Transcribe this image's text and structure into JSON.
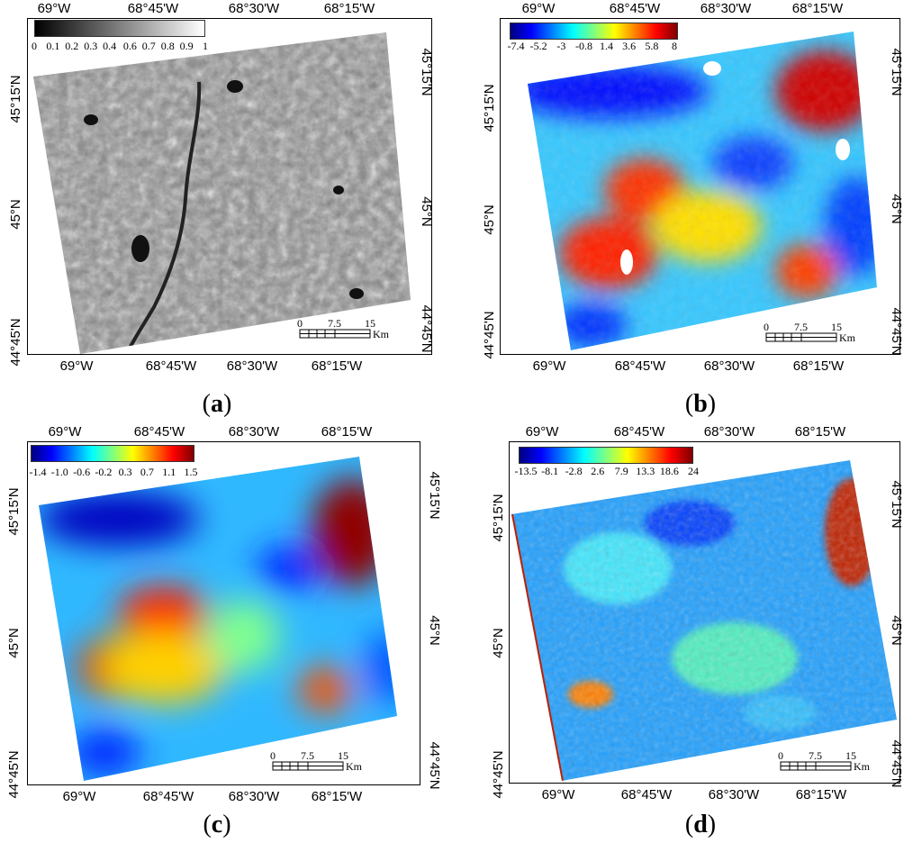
{
  "panels": [
    {
      "id": "a",
      "caption_letter": "a",
      "colorbar_labels": [
        "0",
        "0.1",
        "0.2",
        "0.3",
        "0.4",
        "0.6",
        "0.7",
        "0.8",
        "0.9",
        "1"
      ],
      "colorbar_style": "grayscale",
      "top_ticks": [
        "69°W",
        "68°45'W",
        "68°30'W",
        "68°15'W"
      ],
      "bottom_ticks": [
        "69°W",
        "68°45'W",
        "68°30'W",
        "68°15'W"
      ],
      "left_ticks": [
        "45°15'N",
        "45°N",
        "44°45'N"
      ],
      "right_ticks": [
        "45°15'N",
        "45°N",
        "44°45'N"
      ],
      "scale_labels": [
        "0",
        "7.5",
        "15"
      ],
      "scale_unit": "Km"
    },
    {
      "id": "b",
      "caption_letter": "b",
      "colorbar_labels": [
        "-7.4",
        "-5.2",
        "-3",
        "-0.8",
        "1.4",
        "3.6",
        "5.8",
        "8"
      ],
      "colorbar_style": "jet",
      "top_ticks": [
        "69°W",
        "68°45'W",
        "68°30'W",
        "68°15'W"
      ],
      "bottom_ticks": [
        "69°W",
        "68°45'W",
        "68°30'W",
        "68°15'W"
      ],
      "left_ticks": [
        "45°15'N",
        "45°N",
        "44°45'N"
      ],
      "right_ticks": [
        "45°15'N",
        "45°N",
        "44°45'N"
      ],
      "scale_labels": [
        "0",
        "7.5",
        "15"
      ],
      "scale_unit": "Km"
    },
    {
      "id": "c",
      "caption_letter": "c",
      "colorbar_labels": [
        "-1.4",
        "-1.0",
        "-0.6",
        "-0.2",
        "0.3",
        "0.7",
        "1.1",
        "1.5"
      ],
      "colorbar_style": "jet",
      "top_ticks": [
        "69°W",
        "68°45'W",
        "68°30'W",
        "68°15'W"
      ],
      "bottom_ticks": [
        "69°W",
        "68°45'W",
        "68°30'W",
        "68°15'W"
      ],
      "left_ticks": [
        "45°15'N",
        "45°N",
        "44°45'N"
      ],
      "right_ticks": [
        "45°15'N",
        "45°N",
        "44°45'N"
      ],
      "scale_labels": [
        "0",
        "7.5",
        "15"
      ],
      "scale_unit": "Km"
    },
    {
      "id": "d",
      "caption_letter": "d",
      "colorbar_labels": [
        "-13.5",
        "-8.1",
        "-2.8",
        "2.6",
        "7.9",
        "13.3",
        "18.6",
        "24"
      ],
      "colorbar_style": "jet",
      "top_ticks": [
        "69°W",
        "68°45'W",
        "68°30'W",
        "68°15'W"
      ],
      "bottom_ticks": [
        "69°W",
        "68°45'W",
        "68°30'W",
        "68°15'W"
      ],
      "left_ticks": [
        "45°15'N",
        "45°N",
        "44°45'N"
      ],
      "right_ticks": [
        "45°15'N",
        "45°N",
        "44°45'N"
      ],
      "scale_labels": [
        "0",
        "7.5",
        "15"
      ],
      "scale_unit": "Km"
    }
  ],
  "colors": {
    "jet": [
      "#00007f",
      "#0000ff",
      "#007fff",
      "#00ffff",
      "#7fff7f",
      "#ffff00",
      "#ff7f00",
      "#ff0000",
      "#7f0000"
    ],
    "grayscale": [
      "#000000",
      "#ffffff"
    ]
  }
}
